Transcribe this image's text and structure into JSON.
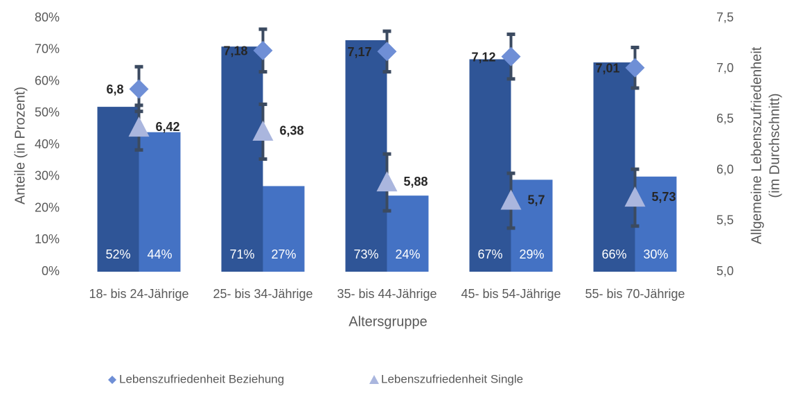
{
  "chart_data": {
    "type": "bar-line",
    "categories": [
      "18- bis 24-Jährige",
      "25- bis 34-Jährige",
      "35- bis 44-Jährige",
      "45- bis 54-Jährige",
      "55- bis 70-Jährige"
    ],
    "xlabel": "Altersgruppe",
    "ylabel": "Anteile (in Prozent)",
    "y2label": [
      "Allgemeine Lebenszufriedenheit",
      "(im Durchschnitt)"
    ],
    "ylim": [
      0,
      80
    ],
    "yticks": [
      {
        "value": 0,
        "label": "0%"
      },
      {
        "value": 10,
        "label": "10%"
      },
      {
        "value": 20,
        "label": "20%"
      },
      {
        "value": 30,
        "label": "30%"
      },
      {
        "value": 40,
        "label": "40%"
      },
      {
        "value": 50,
        "label": "50%"
      },
      {
        "value": 60,
        "label": "60%"
      },
      {
        "value": 70,
        "label": "70%"
      },
      {
        "value": 80,
        "label": "80%"
      }
    ],
    "y2lim": [
      5.0,
      7.5
    ],
    "y2ticks": [
      {
        "value": 5.0,
        "label": "5,0"
      },
      {
        "value": 5.5,
        "label": "5,5"
      },
      {
        "value": 6.0,
        "label": "6,0"
      },
      {
        "value": 6.5,
        "label": "6,5"
      },
      {
        "value": 7.0,
        "label": "7,0"
      },
      {
        "value": 7.5,
        "label": "7,5"
      }
    ],
    "legend": "bottom",
    "series": [
      {
        "type": "bar",
        "color": "#2f5597",
        "values": [
          52,
          71,
          73,
          67,
          66
        ],
        "value_labels": [
          "52%",
          "71%",
          "73%",
          "67%",
          "66%"
        ]
      },
      {
        "type": "bar",
        "color": "#4472c4",
        "values": [
          44,
          27,
          24,
          29,
          30
        ],
        "value_labels": [
          "44%",
          "27%",
          "24%",
          "29%",
          "30%"
        ]
      },
      {
        "type": "diamond",
        "axis": "y2",
        "name": "Lebenszufriedenheit  Beziehung",
        "color": "#6f8fd6",
        "values": [
          6.8,
          7.18,
          7.17,
          7.12,
          7.01
        ],
        "value_labels": [
          "6,8",
          "7,18",
          "7,17",
          "7,12",
          "7,01"
        ],
        "errors": [
          0.22,
          0.21,
          0.2,
          0.22,
          0.2
        ]
      },
      {
        "type": "triangle",
        "axis": "y2",
        "name": "Lebenszufriedenheit Single",
        "color": "#aab6de",
        "values": [
          6.42,
          6.38,
          5.88,
          5.7,
          5.73
        ],
        "value_labels": [
          "6,42",
          "6,38",
          "5,88",
          "5,7",
          "5,73"
        ],
        "errors": [
          0.22,
          0.27,
          0.28,
          0.27,
          0.28
        ]
      }
    ]
  }
}
